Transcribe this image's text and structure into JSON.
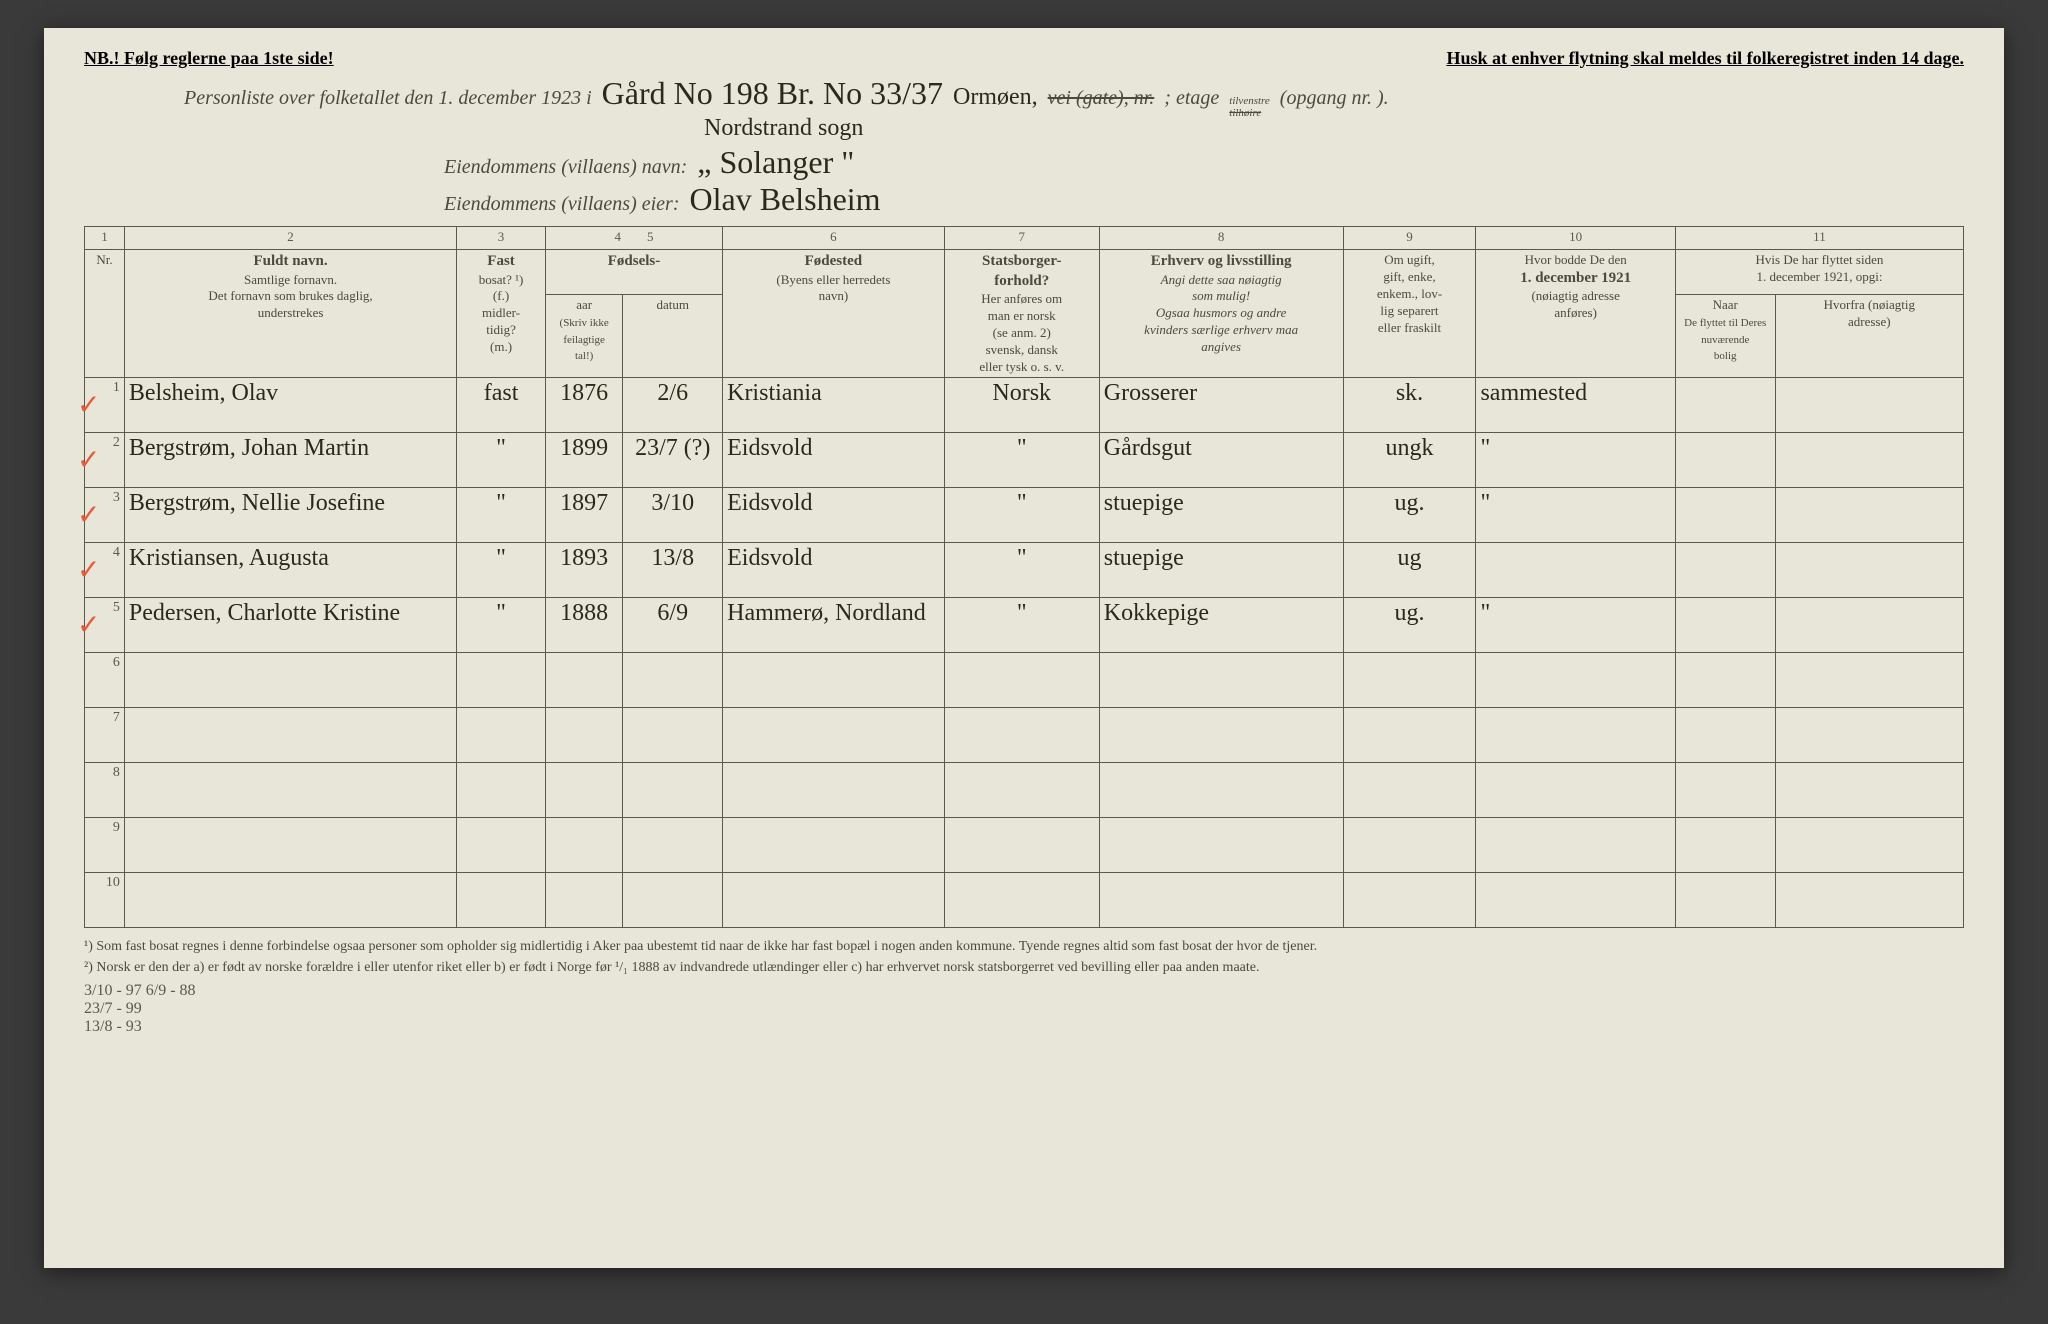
{
  "top": {
    "left_notice": "NB.! Følg reglerne paa 1ste side!",
    "right_notice": "Husk at enhver flytning skal meldes til folkeregistret inden 14 dage."
  },
  "header": {
    "line1_printed": "Personliste over folketallet den 1. december 1923 i",
    "line1_hand": "Gård No 198 Br. No 33/37",
    "line1_printed2": "vei (gate), nr.",
    "line1_hand2": "Ormøen,",
    "line1_printed3": "; etage",
    "line1_small": "tilvenstre",
    "line1_small2": "tilhøire",
    "line1_printed4": "(opgang nr.      ).",
    "line1b_hand": "Nordstrand sogn",
    "line2_printed": "Eiendommens (villaens) navn:",
    "line2_hand": "„ Solanger \"",
    "line3_printed": "Eiendommens (villaens) eier:",
    "line3_hand": "Olav Belsheim"
  },
  "columns_top": [
    "1",
    "2",
    "3",
    "4",
    "5",
    "6",
    "7",
    "8",
    "9",
    "10",
    "11"
  ],
  "headers": {
    "nr": "Nr.",
    "c2_title": "Fuldt navn.",
    "c2_sub": "Samtlige fornavn.\nDet fornavn som brukes daglig,\nunderstrekes",
    "c3_title": "Fast",
    "c3_sub": "bosat? ¹)\n(f.)\nmidler-\ntidig?\n(m.)",
    "c45_title": "Fødsels-",
    "c4_sub": "aar",
    "c5_sub": "datum",
    "c45_note": "(Skriv ikke feilagtige\ntal!)",
    "c6_title": "Fødested",
    "c6_sub": "(Byens eller herredets\nnavn)",
    "c7_title": "Statsborger-\nforhold?",
    "c7_sub": "Her anføres om\nman er norsk\n(se anm. 2)\nsvensk, dansk\neller tysk o. s. v.",
    "c8_title": "Erhverv og livsstilling",
    "c8_sub": "Angi dette saa nøiagtig\nsom mulig!\nOgsaa husmors og andre\nkvinders særlige erhverv maa\nangives",
    "c9_title": "Om ugift,\ngift, enke,\nenkem., lov-\nlig separert\neller fraskilt",
    "c10_title": "Hvor bodde De den",
    "c10_bold": "1. december 1921",
    "c10_sub": "(nøiagtig adresse\nanføres)",
    "c11_title": "Hvis De har flyttet siden\n1. december 1921, opgi:",
    "c11a": "Naar",
    "c11b": "Hvorfra (nøiagtig\nadresse)",
    "c11_sub": "De flyttet til Deres nuværende\nbolig"
  },
  "rows": [
    {
      "n": "1",
      "check": true,
      "name": "Belsheim, Olav",
      "bosat": "fast",
      "aar": "1876",
      "dato": "2/6",
      "sted": "Kristiania",
      "stat": "Norsk",
      "erhverv": "Grosserer",
      "sivil": "sk.",
      "bodde": "sammested",
      "naar": "",
      "fra": ""
    },
    {
      "n": "2",
      "check": true,
      "name": "Bergstrøm, Johan Martin",
      "bosat": "\"",
      "aar": "1899",
      "dato": "23/7 (?)",
      "sted": "Eidsvold",
      "stat": "\"",
      "erhverv": "Gårdsgut",
      "sivil": "ungk",
      "bodde": "\"",
      "naar": "",
      "fra": ""
    },
    {
      "n": "3",
      "check": true,
      "name": "Bergstrøm, Nellie Josefine",
      "bosat": "\"",
      "aar": "1897",
      "dato": "3/10",
      "sted": "Eidsvold",
      "stat": "\"",
      "erhverv": "stuepige",
      "sivil": "ug.",
      "bodde": "\"",
      "naar": "",
      "fra": ""
    },
    {
      "n": "4",
      "check": true,
      "name": "Kristiansen, Augusta",
      "bosat": "\"",
      "aar": "1893",
      "dato": "13/8",
      "sted": "Eidsvold",
      "stat": "\"",
      "erhverv": "stuepige",
      "sivil": "ug",
      "bodde": "",
      "naar": "",
      "fra": ""
    },
    {
      "n": "5",
      "check": true,
      "name": "Pedersen, Charlotte Kristine",
      "bosat": "\"",
      "aar": "1888",
      "dato": "6/9",
      "sted": "Hammerø, Nordland",
      "stat": "\"",
      "erhverv": "Kokkepige",
      "sivil": "ug.",
      "bodde": "\"",
      "naar": "",
      "fra": ""
    },
    {
      "n": "6",
      "check": false,
      "name": "",
      "bosat": "",
      "aar": "",
      "dato": "",
      "sted": "",
      "stat": "",
      "erhverv": "",
      "sivil": "",
      "bodde": "",
      "naar": "",
      "fra": ""
    },
    {
      "n": "7",
      "check": false,
      "name": "",
      "bosat": "",
      "aar": "",
      "dato": "",
      "sted": "",
      "stat": "",
      "erhverv": "",
      "sivil": "",
      "bodde": "",
      "naar": "",
      "fra": ""
    },
    {
      "n": "8",
      "check": false,
      "name": "",
      "bosat": "",
      "aar": "",
      "dato": "",
      "sted": "",
      "stat": "",
      "erhverv": "",
      "sivil": "",
      "bodde": "",
      "naar": "",
      "fra": ""
    },
    {
      "n": "9",
      "check": false,
      "name": "",
      "bosat": "",
      "aar": "",
      "dato": "",
      "sted": "",
      "stat": "",
      "erhverv": "",
      "sivil": "",
      "bodde": "",
      "naar": "",
      "fra": ""
    },
    {
      "n": "10",
      "check": false,
      "name": "",
      "bosat": "",
      "aar": "",
      "dato": "",
      "sted": "",
      "stat": "",
      "erhverv": "",
      "sivil": "",
      "bodde": "",
      "naar": "",
      "fra": ""
    }
  ],
  "footnotes": {
    "f1": "¹) Som fast bosat regnes i denne forbindelse ogsaa personer som opholder sig midlertidig i Aker paa ubestemt tid naar de ikke har fast bopæl i nogen anden kommune. Tyende regnes altid som fast bosat der hvor de tjener.",
    "f2": "²) Norsk er den der a) er født av norske forældre i eller utenfor riket eller b) er født i Norge før ¹/₁ 1888 av indvandrede utlændinger eller c) har erhvervet norsk statsborgerret ved bevilling eller paa anden maate."
  },
  "margin": {
    "l1": "3/10 - 97   6/9 - 88",
    "l2": "23/7 - 99",
    "l3": "13/8 - 93"
  },
  "colwidths": {
    "c1": "36px",
    "c2": "300px",
    "c3": "80px",
    "c4": "70px",
    "c5": "90px",
    "c6": "200px",
    "c7": "140px",
    "c8": "220px",
    "c9": "120px",
    "c10": "180px",
    "c11a": "90px",
    "c11b": "170px"
  }
}
